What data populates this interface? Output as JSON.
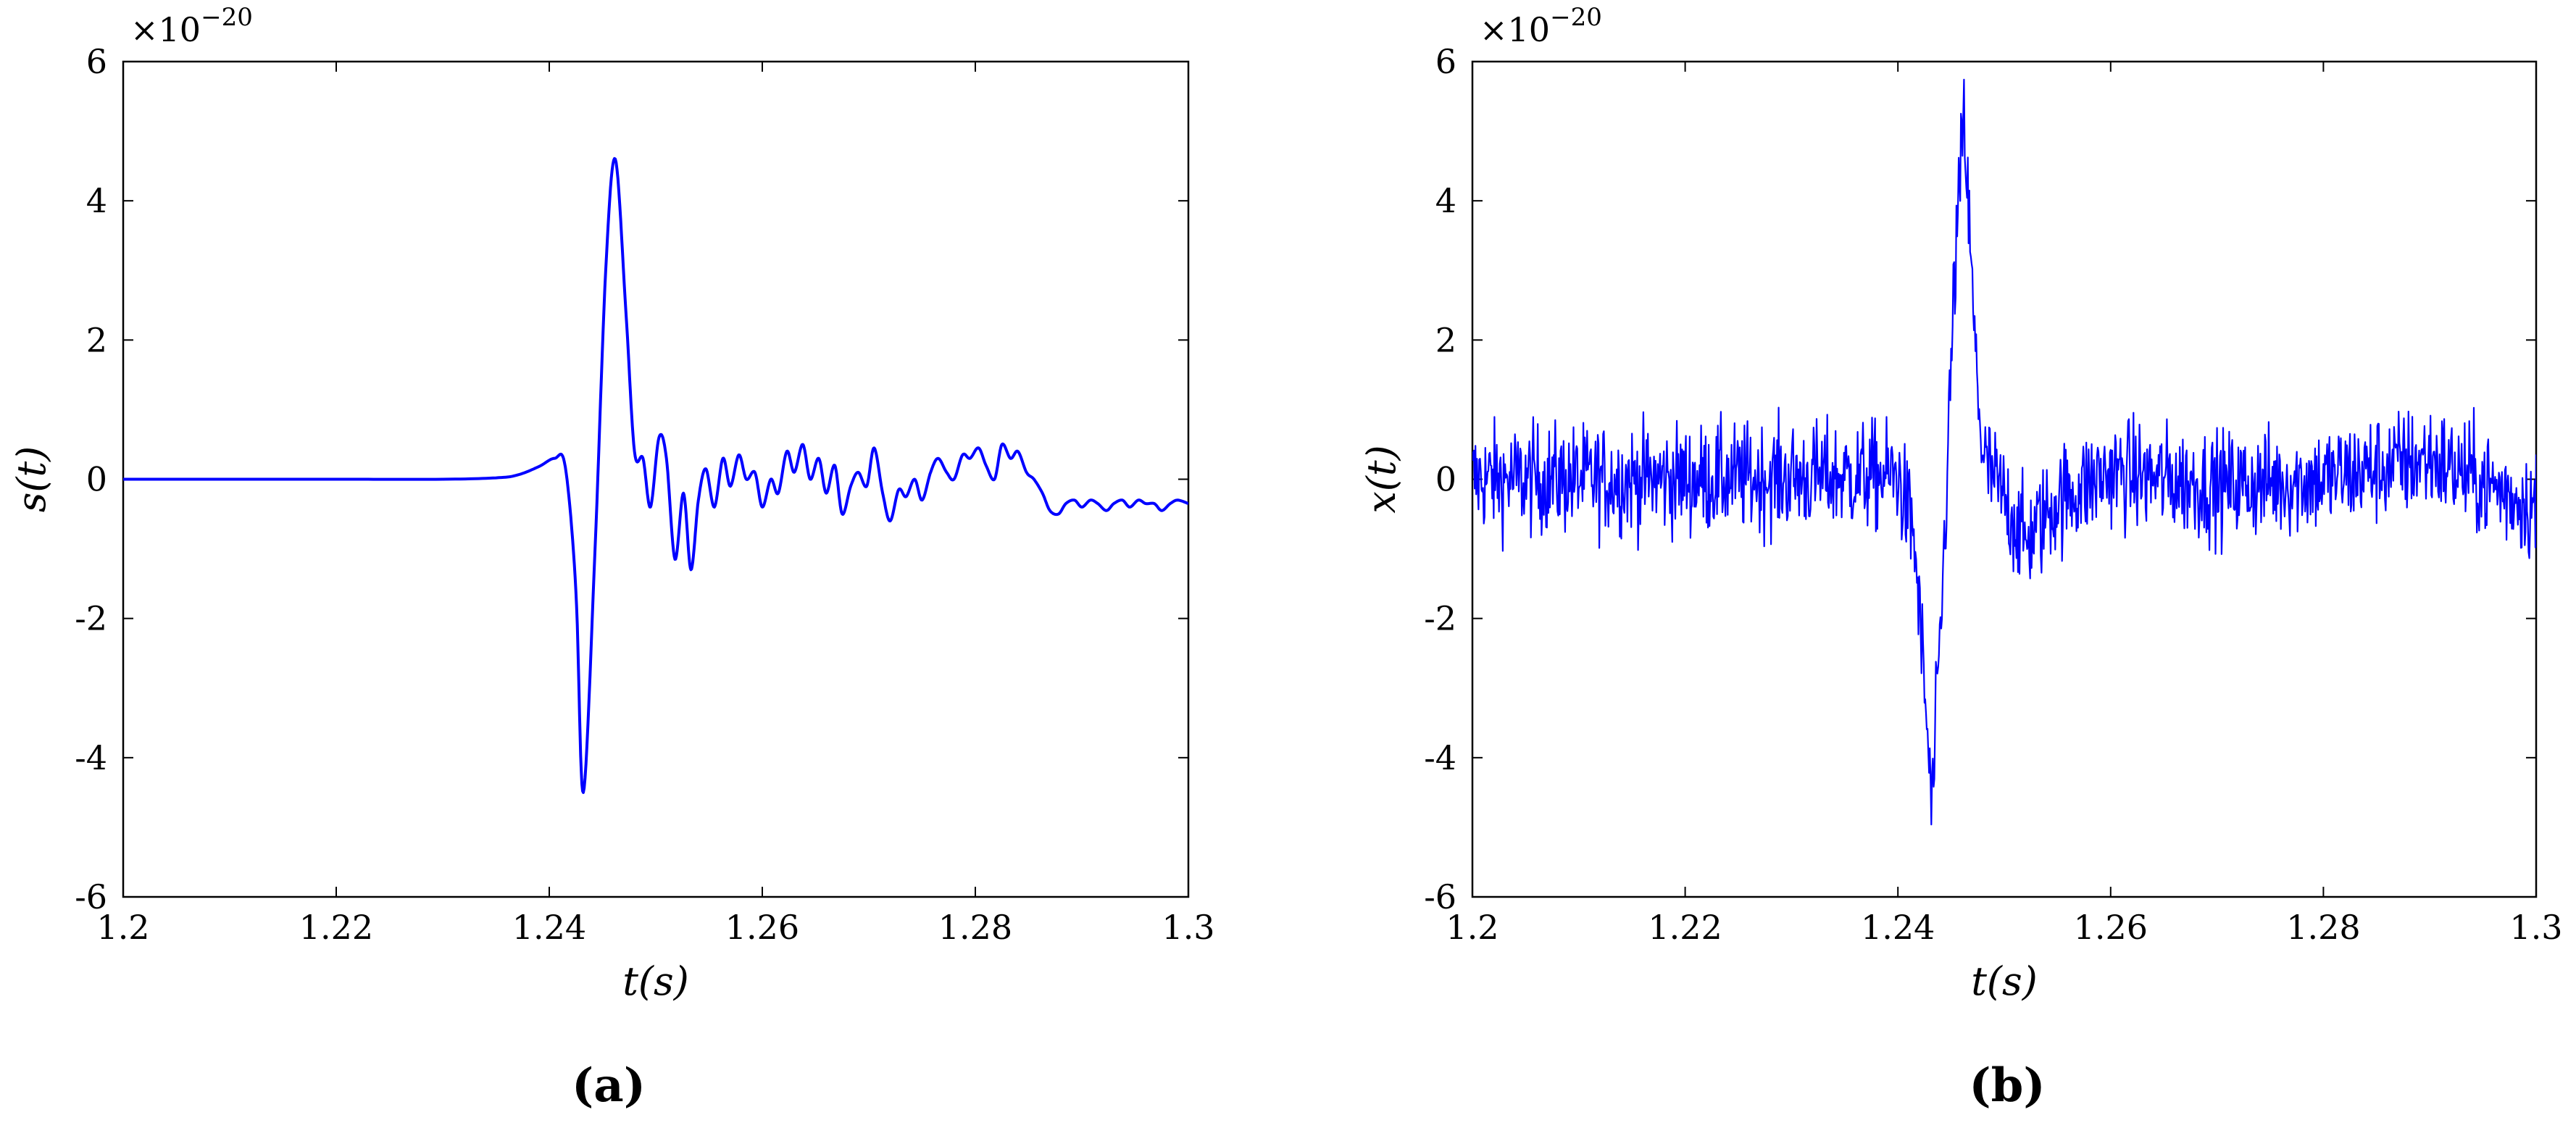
{
  "chart_data": [
    {
      "type": "line",
      "caption": "(a)",
      "xlabel": "t(s)",
      "ylabel": "s(t)",
      "scale_factor": "×10",
      "scale_exponent": "−20",
      "xlim": [
        1.2,
        1.3
      ],
      "ylim": [
        -6,
        6
      ],
      "x_ticks": [
        "1.2",
        "1.22",
        "1.24",
        "1.26",
        "1.28",
        "1.3"
      ],
      "y_ticks": [
        "6",
        "4",
        "2",
        "0",
        "-2",
        "-4",
        "-6"
      ],
      "grid": false,
      "line_color": "#0000ff",
      "series": [
        {
          "x": [
            1.2,
            1.21,
            1.22,
            1.23,
            1.235,
            1.237,
            1.239,
            1.2405,
            1.2415,
            1.2425,
            1.2432,
            1.2443,
            1.2453,
            1.2462,
            1.2472,
            1.248,
            1.2488,
            1.2495,
            1.2503,
            1.251,
            1.2518,
            1.2526,
            1.2533,
            1.254,
            1.2547,
            1.2555,
            1.2563,
            1.257,
            1.2578,
            1.2585,
            1.2593,
            1.26,
            1.2608,
            1.2615,
            1.2623,
            1.263,
            1.2638,
            1.2645,
            1.2653,
            1.266,
            1.2668,
            1.2675,
            1.2683,
            1.269,
            1.2698,
            1.2705,
            1.2713,
            1.272,
            1.2728,
            1.2735,
            1.2743,
            1.275,
            1.2758,
            1.2765,
            1.2773,
            1.278,
            1.2788,
            1.2795,
            1.2803,
            1.281,
            1.2818,
            1.2825,
            1.2833,
            1.284,
            1.2848,
            1.2855,
            1.2863,
            1.287,
            1.2878,
            1.2885,
            1.2893,
            1.29,
            1.2908,
            1.2915,
            1.2923,
            1.293,
            1.2938,
            1.2945,
            1.2953,
            1.296,
            1.2968,
            1.2975,
            1.2983,
            1.299,
            1.3
          ],
          "y": [
            0,
            0,
            0,
            0,
            0.02,
            0.06,
            0.18,
            0.3,
            0.18,
            -1.6,
            -4.5,
            -1.0,
            3.0,
            4.6,
            2.4,
            0.4,
            0.3,
            -0.4,
            0.6,
            0.3,
            -1.15,
            -0.2,
            -1.3,
            -0.3,
            0.15,
            -0.4,
            0.3,
            -0.1,
            0.35,
            0.0,
            0.1,
            -0.4,
            0.0,
            -0.2,
            0.4,
            0.1,
            0.5,
            0.0,
            0.3,
            -0.2,
            0.2,
            -0.5,
            -0.1,
            0.1,
            -0.1,
            0.45,
            -0.2,
            -0.6,
            -0.15,
            -0.25,
            0.0,
            -0.3,
            0.1,
            0.3,
            0.1,
            0.0,
            0.35,
            0.3,
            0.45,
            0.2,
            0.0,
            0.5,
            0.3,
            0.4,
            0.1,
            0.0,
            -0.2,
            -0.45,
            -0.5,
            -0.35,
            -0.3,
            -0.4,
            -0.3,
            -0.35,
            -0.45,
            -0.35,
            -0.3,
            -0.4,
            -0.3,
            -0.35,
            -0.35,
            -0.45,
            -0.35,
            -0.3,
            -0.35
          ]
        }
      ]
    },
    {
      "type": "line",
      "caption": "(b)",
      "xlabel": "t(s)",
      "ylabel": "x(t)",
      "scale_factor": "×10",
      "scale_exponent": "−20",
      "xlim": [
        1.2,
        1.3
      ],
      "ylim": [
        -6,
        6
      ],
      "x_ticks": [
        "1.2",
        "1.22",
        "1.24",
        "1.26",
        "1.28",
        "1.3"
      ],
      "y_ticks": [
        "6",
        "4",
        "2",
        "0",
        "-2",
        "-4",
        "-6"
      ],
      "grid": false,
      "line_color": "#0000ff",
      "series": [
        {
          "x": [
            1.2,
            1.3
          ],
          "y": [
            0.1,
            -0.4
          ],
          "envelope": {
            "x": [
              1.2,
              1.22,
              1.24,
              1.2415,
              1.2425,
              1.2432,
              1.2443,
              1.2453,
              1.2462,
              1.2472,
              1.248,
              1.25,
              1.252,
              1.255,
              1.26,
              1.27,
              1.28,
              1.29,
              1.3
            ],
            "center": [
              0,
              0,
              0.05,
              -0.8,
              -3.0,
              -4.8,
              -1.2,
              2.8,
              5.2,
              2.0,
              0.3,
              -0.3,
              -0.9,
              -0.3,
              0.1,
              -0.1,
              0.0,
              0.3,
              -0.4
            ],
            "noise_amplitude": 0.75
          }
        }
      ]
    }
  ]
}
